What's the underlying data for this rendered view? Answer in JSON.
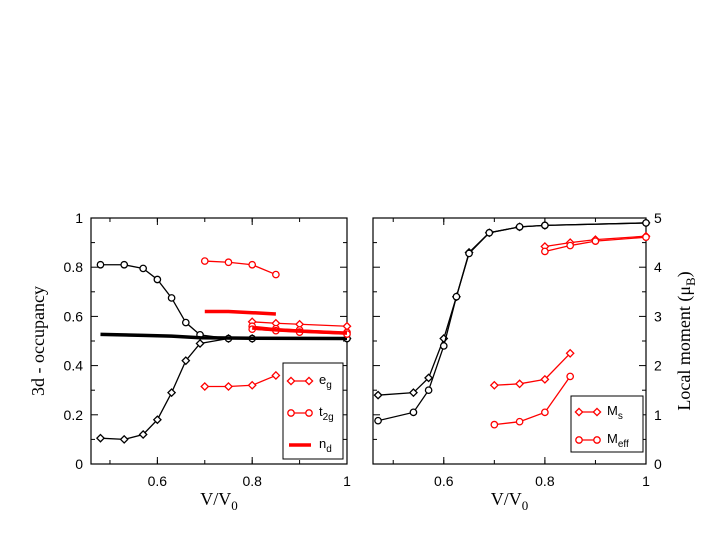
{
  "chart_data": [
    {
      "type": "line",
      "xlabel": "V/V",
      "xlabel_sub": "0",
      "ylabel": "3d - occupancy",
      "xlim": [
        0.46,
        1.0
      ],
      "ylim": [
        0,
        1
      ],
      "xticks": [
        "0.6",
        "0.8",
        "1"
      ],
      "yticks": [
        "0",
        "0.2",
        "0.4",
        "0.6",
        "0.8",
        "1"
      ],
      "series": [
        {
          "name": "black diamonds",
          "color": "#000000",
          "marker": "diamond",
          "x": [
            0.48,
            0.53,
            0.57,
            0.6,
            0.63,
            0.66,
            0.69,
            0.75,
            0.8,
            1.0
          ],
          "y": [
            0.105,
            0.1,
            0.12,
            0.18,
            0.29,
            0.42,
            0.49,
            0.51,
            0.51,
            0.51
          ]
        },
        {
          "name": "black circles",
          "color": "#000000",
          "marker": "circle",
          "x": [
            0.48,
            0.53,
            0.57,
            0.6,
            0.63,
            0.66,
            0.69,
            0.75,
            0.8,
            1.0
          ],
          "y": [
            0.81,
            0.81,
            0.795,
            0.75,
            0.675,
            0.575,
            0.525,
            0.51,
            0.51,
            0.51
          ]
        },
        {
          "name": "black nd",
          "color": "#000000",
          "marker": "none",
          "bold": true,
          "x": [
            0.48,
            0.57,
            0.63,
            0.69,
            0.75,
            0.8,
            1.0
          ],
          "y": [
            0.527,
            0.523,
            0.52,
            0.513,
            0.512,
            0.511,
            0.51
          ]
        },
        {
          "name": "red eg low",
          "color": "#ff0000",
          "marker": "diamond",
          "x": [
            0.7,
            0.75,
            0.8,
            0.85
          ],
          "y": [
            0.315,
            0.315,
            0.32,
            0.36
          ]
        },
        {
          "name": "red t2g high",
          "color": "#ff0000",
          "marker": "circle",
          "x": [
            0.7,
            0.75,
            0.8,
            0.85
          ],
          "y": [
            0.825,
            0.82,
            0.81,
            0.77
          ]
        },
        {
          "name": "red nd mid",
          "color": "#ff0000",
          "marker": "none",
          "bold": true,
          "x": [
            0.7,
            0.75,
            0.8,
            0.85
          ],
          "y": [
            0.62,
            0.62,
            0.615,
            0.61
          ]
        },
        {
          "name": "red eg right",
          "color": "#ff0000",
          "marker": "diamond",
          "x": [
            0.8,
            0.85,
            0.9,
            1.0
          ],
          "y": [
            0.578,
            0.572,
            0.568,
            0.56
          ]
        },
        {
          "name": "red t2g right a",
          "color": "#ff0000",
          "marker": "circle",
          "x": [
            0.8,
            0.85,
            0.9,
            1.0
          ],
          "y": [
            0.56,
            0.55,
            0.545,
            0.535
          ]
        },
        {
          "name": "red t2g right b",
          "color": "#ff0000",
          "marker": "circle",
          "x": [
            0.8,
            0.85,
            0.9,
            1.0
          ],
          "y": [
            0.548,
            0.542,
            0.536,
            0.528
          ]
        },
        {
          "name": "red nd right",
          "color": "#ff0000",
          "marker": "none",
          "bold": true,
          "x": [
            0.8,
            0.85,
            0.9,
            1.0
          ],
          "y": [
            0.553,
            0.545,
            0.54,
            0.532
          ]
        }
      ],
      "legend": {
        "position": "bottom-right",
        "entries": [
          {
            "label": "e",
            "sub": "g",
            "marker": "diamond",
            "color": "#ff0000"
          },
          {
            "label": "t",
            "sub": "2g",
            "marker": "circle",
            "color": "#ff0000"
          },
          {
            "label": "n",
            "sub": "d",
            "marker": "bold",
            "color": "#ff0000"
          }
        ]
      }
    },
    {
      "type": "line",
      "xlabel": "V/V",
      "xlabel_sub": "0",
      "ylabel": "Local moment (μ",
      "ylabel_sub": "B",
      "ylabel_end": ")",
      "xlim": [
        0.46,
        1.0
      ],
      "ylim": [
        0,
        5
      ],
      "xticks": [
        "0.6",
        "0.8",
        "1"
      ],
      "yticks": [
        "0",
        "1",
        "2",
        "3",
        "4",
        "5"
      ],
      "series": [
        {
          "name": "black diamonds",
          "color": "#000000",
          "marker": "diamond",
          "x": [
            0.47,
            0.54,
            0.57,
            0.6,
            0.625,
            0.65,
            0.69,
            0.75,
            0.8,
            1.0
          ],
          "y": [
            1.4,
            1.45,
            1.75,
            2.55,
            3.4,
            4.3,
            4.7,
            4.82,
            4.85,
            4.9
          ]
        },
        {
          "name": "black circles",
          "color": "#000000",
          "marker": "circle",
          "x": [
            0.47,
            0.54,
            0.57,
            0.6,
            0.625,
            0.65,
            0.69,
            0.75,
            0.8,
            1.0
          ],
          "y": [
            0.88,
            1.05,
            1.5,
            2.4,
            3.4,
            4.28,
            4.7,
            4.82,
            4.85,
            4.9
          ]
        },
        {
          "name": "red Ms low",
          "color": "#ff0000",
          "marker": "diamond",
          "x": [
            0.7,
            0.75,
            0.8,
            0.85
          ],
          "y": [
            1.6,
            1.63,
            1.72,
            2.25
          ]
        },
        {
          "name": "red Meff low",
          "color": "#ff0000",
          "marker": "circle",
          "x": [
            0.7,
            0.75,
            0.8,
            0.85
          ],
          "y": [
            0.8,
            0.86,
            1.05,
            1.78
          ]
        },
        {
          "name": "red Ms high",
          "color": "#ff0000",
          "marker": "diamond",
          "x": [
            0.8,
            0.85,
            0.9,
            1.0
          ],
          "y": [
            4.42,
            4.5,
            4.56,
            4.63
          ]
        },
        {
          "name": "red Meff high",
          "color": "#ff0000",
          "marker": "circle",
          "x": [
            0.8,
            0.85,
            0.9,
            1.0
          ],
          "y": [
            4.32,
            4.44,
            4.53,
            4.61
          ]
        }
      ],
      "legend": {
        "position": "bottom-right",
        "entries": [
          {
            "label": "M",
            "sub": "s",
            "marker": "diamond",
            "color": "#ff0000"
          },
          {
            "label": "M",
            "sub": "eff",
            "marker": "circle",
            "color": "#ff0000"
          }
        ]
      }
    }
  ]
}
